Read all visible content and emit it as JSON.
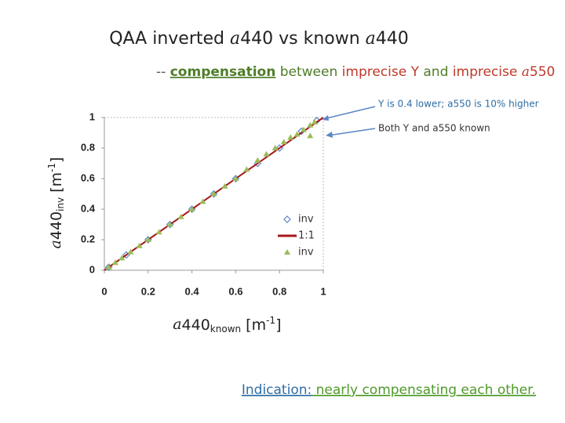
{
  "title": [
    "QAA inverted ",
    "a",
    "440 vs known ",
    "a",
    "440"
  ],
  "subtitle": [
    "-- ",
    "compensation",
    " between ",
    "imprecise Y",
    " and ",
    "imprecise ",
    "a",
    "550"
  ],
  "annotations": [
    "Y is 0.4 lower; a550 is 10% higher",
    "Both Y and a550 known"
  ],
  "footer": [
    "Indication:",
    " nearly compensating each other."
  ],
  "chart_data": {
    "type": "scatter",
    "y_label": [
      "a",
      "440",
      "inv",
      " [m",
      "-1",
      "]"
    ],
    "x_label": [
      "a",
      "440",
      "known",
      " [m",
      "-1",
      "]"
    ],
    "xlim": [
      0,
      1
    ],
    "ylim": [
      0,
      1
    ],
    "xticks": [
      0,
      0.2,
      0.4,
      0.6,
      0.8,
      1
    ],
    "yticks": [
      0,
      0.2,
      0.4,
      0.6,
      0.8,
      1
    ],
    "series": [
      {
        "name": "inv",
        "marker": "diamond",
        "color": "#5b87c5",
        "x": [
          0.02,
          0.1,
          0.2,
          0.3,
          0.4,
          0.5,
          0.6,
          0.7,
          0.8,
          0.9,
          0.97
        ],
        "values": [
          0.02,
          0.1,
          0.2,
          0.3,
          0.4,
          0.5,
          0.6,
          0.7,
          0.8,
          0.91,
          0.98
        ]
      },
      {
        "name": "1:1",
        "marker": "line",
        "color": "#a5191c",
        "x": [
          0,
          1
        ],
        "values": [
          0,
          1
        ]
      },
      {
        "name": "inv",
        "marker": "triangle",
        "color": "#9bbb59",
        "x": [
          0.02,
          0.05,
          0.08,
          0.12,
          0.16,
          0.2,
          0.25,
          0.3,
          0.35,
          0.4,
          0.45,
          0.5,
          0.55,
          0.6,
          0.65,
          0.7,
          0.74,
          0.78,
          0.82,
          0.85,
          0.88,
          0.91,
          0.94,
          0.96,
          0.94
        ],
        "values": [
          0.02,
          0.05,
          0.08,
          0.12,
          0.16,
          0.2,
          0.25,
          0.3,
          0.35,
          0.4,
          0.45,
          0.5,
          0.55,
          0.6,
          0.66,
          0.72,
          0.76,
          0.8,
          0.84,
          0.87,
          0.89,
          0.92,
          0.95,
          0.97,
          0.88
        ]
      }
    ]
  }
}
